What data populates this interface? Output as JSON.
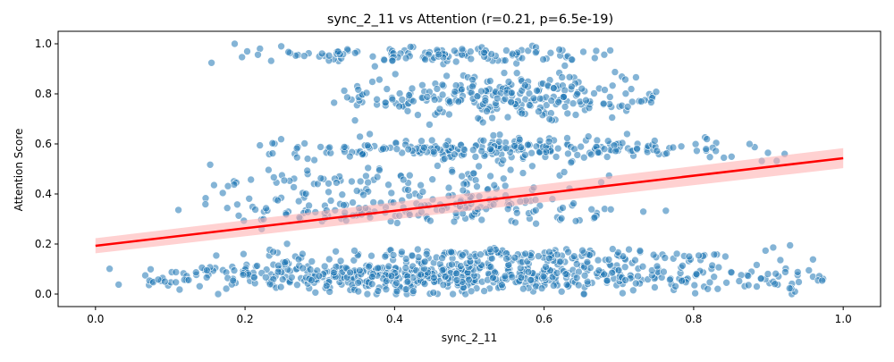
{
  "chart_data": {
    "type": "scatter",
    "title": "sync_2_11 vs Attention (r=0.21, p=6.5e-19)",
    "xlabel": "sync_2_11",
    "ylabel": "Attention Score",
    "xlim": [
      -0.05,
      1.05
    ],
    "ylim": [
      -0.05,
      1.05
    ],
    "x_ticks": [
      "0.0",
      "0.2",
      "0.4",
      "0.6",
      "0.8",
      "1.0"
    ],
    "x_tick_values": [
      0.0,
      0.2,
      0.4,
      0.6,
      0.8,
      1.0
    ],
    "y_ticks": [
      "0.0",
      "0.2",
      "0.4",
      "0.6",
      "0.8",
      "1.0"
    ],
    "y_tick_values": [
      0.0,
      0.2,
      0.4,
      0.6,
      0.8,
      1.0
    ],
    "grid": false,
    "legend": "none",
    "point_color": "#1f77b4",
    "regression": {
      "color": "#ff0000",
      "band_color": "#ffb3b3",
      "x": [
        0.0,
        1.0
      ],
      "y": [
        0.193,
        0.543
      ],
      "ci_low": [
        0.163,
        0.503
      ],
      "ci_high": [
        0.223,
        0.583
      ]
    },
    "clusters": [
      {
        "y_center": 0.07,
        "y_spread": 0.055,
        "x_min": 0.0,
        "x_max": 1.0,
        "x_mode": 0.45,
        "count": 620
      },
      {
        "y_center": 0.155,
        "y_spread": 0.03,
        "x_min": 0.15,
        "x_max": 0.97,
        "x_mode": 0.6,
        "count": 150
      },
      {
        "y_center": 0.34,
        "y_spread": 0.05,
        "x_min": 0.1,
        "x_max": 0.78,
        "x_mode": 0.45,
        "count": 170
      },
      {
        "y_center": 0.58,
        "y_spread": 0.035,
        "x_min": 0.2,
        "x_max": 0.95,
        "x_mode": 0.55,
        "count": 260
      },
      {
        "y_center": 0.45,
        "y_spread": 0.06,
        "x_min": 0.12,
        "x_max": 0.72,
        "x_mode": 0.45,
        "count": 90
      },
      {
        "y_center": 0.79,
        "y_spread": 0.07,
        "x_min": 0.3,
        "x_max": 0.78,
        "x_mode": 0.55,
        "count": 260
      },
      {
        "y_center": 0.96,
        "y_spread": 0.03,
        "x_min": 0.13,
        "x_max": 0.7,
        "x_mode": 0.5,
        "count": 130
      }
    ]
  }
}
